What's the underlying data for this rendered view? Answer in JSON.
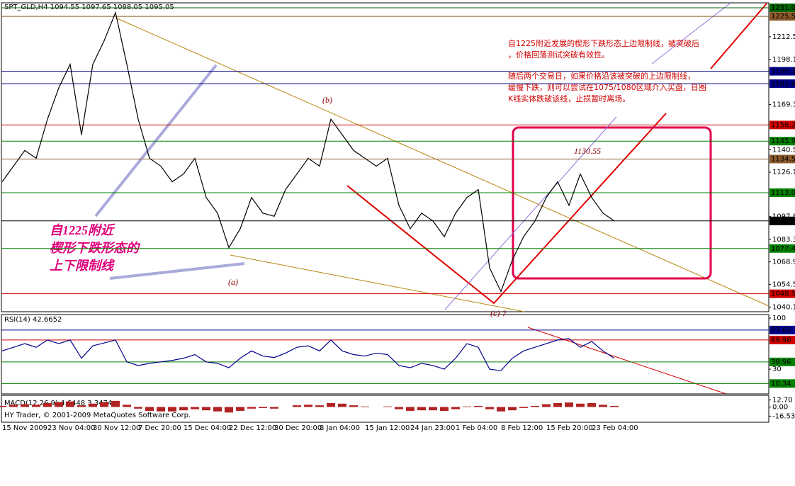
{
  "chart_data": [
    {
      "type": "line",
      "title": "SPT_GLD,H4  1094.55 1097.65 1088.05 1095.05",
      "color": "#000000",
      "categories": [
        "15 Nov 2009",
        null,
        null,
        null,
        "23 Nov 04:00",
        null,
        null,
        null,
        "30 Nov 12:00",
        null,
        null,
        null,
        "7 Dec 20:00",
        null,
        null,
        null,
        "15 Dec 04:00",
        null,
        null,
        null,
        "22 Dec 12:00",
        null,
        null,
        null,
        "30 Dec 20:00",
        null,
        null,
        null,
        "8 Jan 04:00",
        null,
        null,
        null,
        "15 Jan 12:00",
        null,
        null,
        null,
        "24 Jan 23:00",
        null,
        null,
        null,
        "1 Feb 04:00",
        null,
        null,
        null,
        "8 Feb 12:00",
        null,
        null,
        null,
        "15 Feb 20:00",
        null,
        null,
        null,
        "23 Feb 04:00",
        null,
        null
      ],
      "values": [
        1120,
        1130,
        1140,
        1135,
        1160,
        1180,
        1195,
        1150,
        1195,
        1210,
        1228,
        1195,
        1160,
        1135,
        1130,
        1120,
        1125,
        1135,
        1110,
        1100,
        1078,
        1090,
        1110,
        1100,
        1098,
        1115,
        1125,
        1135,
        1130,
        1160,
        1150,
        1140,
        1135,
        1130,
        1135,
        1105,
        1090,
        1100,
        1095,
        1085,
        1100,
        1110,
        1115,
        1065,
        1050,
        1070,
        1085,
        1095,
        1110,
        1120,
        1105,
        1125,
        1110,
        1100,
        1095
      ],
      "ylim": [
        1038,
        1233.3
      ],
      "yticks": [
        1212.55,
        1198.1,
        1169.3,
        1140.5,
        1126.15,
        1097.8,
        1083.3,
        1068.9,
        1054.55,
        1040.1
      ],
      "levels": [
        {
          "value": 1231.05,
          "color": "#006400"
        },
        {
          "value": 1225.56,
          "color": "#8b5a2b"
        },
        {
          "value": 1190.53,
          "color": "#00008b"
        },
        {
          "value": 1182.62,
          "color": "#00008b"
        },
        {
          "value": 1156.27,
          "color": "#d00000"
        },
        {
          "value": 1145.95,
          "color": "#008000"
        },
        {
          "value": 1134.53,
          "color": "#8b5a2b"
        },
        {
          "value": 1113.06,
          "color": "#008000"
        },
        {
          "value": 1095.05,
          "color": "#000000"
        },
        {
          "value": 1077.43,
          "color": "#008000"
        },
        {
          "value": 1048.55,
          "color": "#d00000"
        }
      ],
      "note1": [
        "自1225附近发展的楔形下跌形态上边限制线，被突破后",
        "，价格回落测试突破有效性。"
      ],
      "note2": [
        "随后两个交易日，如果价格沿该被突破的上边限制线，",
        "缓慢下跌，则可以尝试在1075/1080区域介入买盘，日图",
        "K线实体跌破该线，止损暂时离场。"
      ],
      "wedge_label": [
        "自1225附近",
        "楔形下跌形态的",
        "上下限制线"
      ],
      "labels": [
        "(a)",
        "(b)",
        "(c) ?",
        "1130.55"
      ]
    },
    {
      "type": "line",
      "title": "RSI(14) 42.6652",
      "color": "#00008b",
      "values": [
        55,
        60,
        65,
        60,
        70,
        65,
        70,
        45,
        62,
        66,
        70,
        40,
        35,
        38,
        40,
        42,
        45,
        50,
        40,
        38,
        32,
        45,
        55,
        48,
        46,
        52,
        60,
        62,
        55,
        70,
        55,
        50,
        48,
        52,
        50,
        35,
        32,
        38,
        35,
        30,
        45,
        65,
        60,
        30,
        28,
        45,
        55,
        60,
        65,
        70,
        72,
        60,
        68,
        55,
        45
      ],
      "ylim": [
        0,
        100
      ],
      "yticks": [
        100,
        30
      ],
      "levels": [
        {
          "value": 83.62,
          "color": "#00008b"
        },
        {
          "value": 69.98,
          "color": "#d00000"
        },
        {
          "value": 39.96,
          "color": "#008000"
        },
        {
          "value": 10.34,
          "color": "#008000"
        }
      ]
    },
    {
      "type": "bar",
      "title": "MACD(12,26,9) 4.6448 3.3474",
      "color": "#b22222",
      "values": [
        2,
        4,
        5,
        4,
        7,
        9,
        10,
        3,
        6,
        9,
        11,
        4,
        -3,
        -7,
        -8,
        -8,
        -6,
        -4,
        -6,
        -8,
        -10,
        -7,
        -3,
        -2,
        -3,
        0,
        3,
        4,
        3,
        7,
        6,
        3,
        1,
        0,
        1,
        -4,
        -7,
        -6,
        -6,
        -7,
        -4,
        1,
        2,
        -4,
        -8,
        -6,
        -2,
        2,
        5,
        7,
        8,
        6,
        7,
        4,
        2
      ],
      "ylim": [
        -25,
        18.5
      ],
      "yticks": [
        {
          "value": 12.7,
          "label": "12.70"
        },
        {
          "value": 0,
          "label": "0.00"
        },
        -16.533
      ],
      "footer": "HY Trader, © 2001-2009 MetaQuotes Software Corp."
    }
  ]
}
